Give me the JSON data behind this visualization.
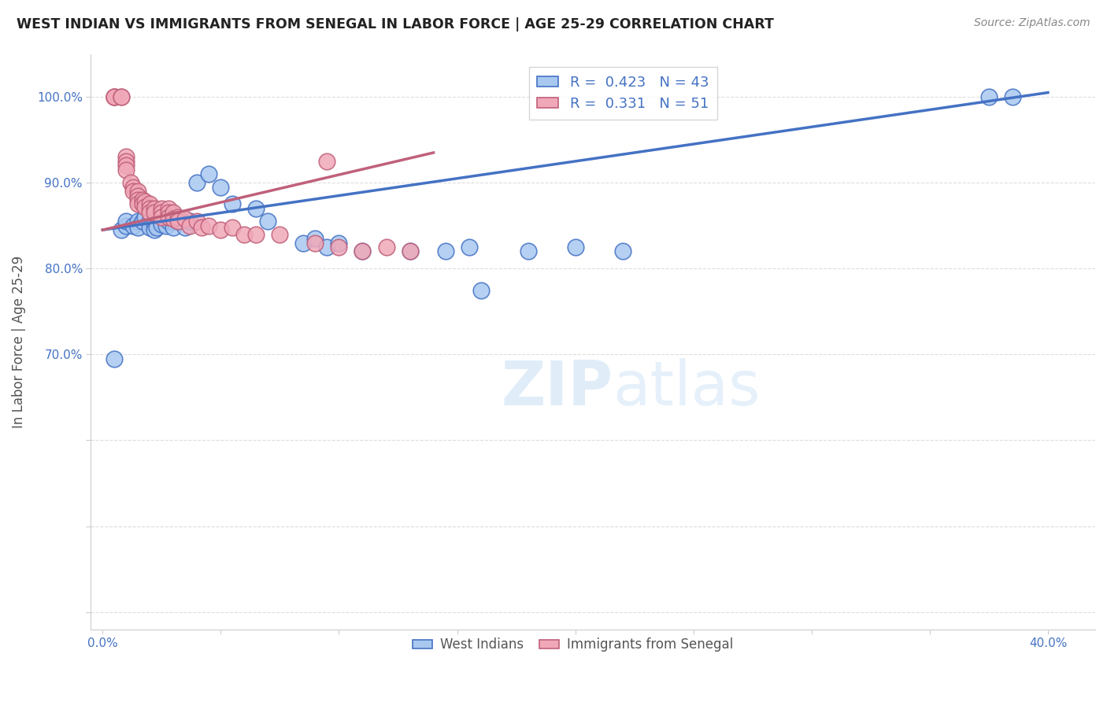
{
  "title": "WEST INDIAN VS IMMIGRANTS FROM SENEGAL IN LABOR FORCE | AGE 25-29 CORRELATION CHART",
  "source": "Source: ZipAtlas.com",
  "ylabel": "In Labor Force | Age 25-29",
  "watermark": "ZIPatlas",
  "blue_R": 0.423,
  "blue_N": 43,
  "pink_R": 0.331,
  "pink_N": 51,
  "xlim": [
    -0.005,
    0.42
  ],
  "ylim": [
    0.38,
    1.05
  ],
  "blue_color": "#a8c8f0",
  "pink_color": "#f0a8b8",
  "blue_line_color": "#4472c4",
  "pink_line_color": "#c0607a",
  "blue_trendline_x": [
    0.0,
    0.4
  ],
  "blue_trendline_y": [
    0.845,
    1.005
  ],
  "pink_trendline_x": [
    0.0,
    0.14
  ],
  "pink_trendline_y": [
    0.845,
    0.935
  ],
  "grid_color": "#dddddd",
  "legend_blue_label": "West Indians",
  "legend_pink_label": "Immigrants from Senegal",
  "blue_scatter_x": [
    0.005,
    0.008,
    0.01,
    0.01,
    0.013,
    0.015,
    0.015,
    0.017,
    0.018,
    0.02,
    0.02,
    0.022,
    0.022,
    0.023,
    0.025,
    0.025,
    0.027,
    0.028,
    0.03,
    0.03,
    0.032,
    0.035,
    0.037,
    0.04,
    0.045,
    0.05,
    0.055,
    0.065,
    0.07,
    0.085,
    0.09,
    0.095,
    0.1,
    0.11,
    0.13,
    0.145,
    0.155,
    0.16,
    0.18,
    0.2,
    0.22,
    0.375,
    0.385
  ],
  "blue_scatter_y": [
    0.695,
    0.845,
    0.85,
    0.855,
    0.85,
    0.855,
    0.848,
    0.855,
    0.86,
    0.855,
    0.848,
    0.852,
    0.845,
    0.848,
    0.855,
    0.852,
    0.85,
    0.855,
    0.855,
    0.848,
    0.855,
    0.848,
    0.855,
    0.9,
    0.91,
    0.895,
    0.875,
    0.87,
    0.855,
    0.83,
    0.835,
    0.825,
    0.83,
    0.82,
    0.82,
    0.82,
    0.825,
    0.775,
    0.82,
    0.825,
    0.82,
    1.0,
    1.0
  ],
  "pink_scatter_x": [
    0.005,
    0.005,
    0.005,
    0.008,
    0.008,
    0.01,
    0.01,
    0.01,
    0.01,
    0.012,
    0.013,
    0.013,
    0.015,
    0.015,
    0.015,
    0.015,
    0.017,
    0.017,
    0.018,
    0.018,
    0.02,
    0.02,
    0.02,
    0.022,
    0.022,
    0.025,
    0.025,
    0.025,
    0.028,
    0.028,
    0.028,
    0.03,
    0.03,
    0.032,
    0.032,
    0.035,
    0.037,
    0.04,
    0.042,
    0.045,
    0.05,
    0.055,
    0.06,
    0.065,
    0.075,
    0.09,
    0.095,
    0.1,
    0.11,
    0.12,
    0.13
  ],
  "pink_scatter_y": [
    1.0,
    1.0,
    1.0,
    1.0,
    1.0,
    0.93,
    0.925,
    0.92,
    0.915,
    0.9,
    0.895,
    0.89,
    0.89,
    0.885,
    0.88,
    0.875,
    0.88,
    0.875,
    0.878,
    0.872,
    0.875,
    0.87,
    0.865,
    0.87,
    0.865,
    0.87,
    0.865,
    0.86,
    0.87,
    0.865,
    0.86,
    0.865,
    0.858,
    0.86,
    0.855,
    0.858,
    0.85,
    0.855,
    0.848,
    0.85,
    0.845,
    0.848,
    0.84,
    0.84,
    0.84,
    0.83,
    0.925,
    0.825,
    0.82,
    0.825,
    0.82
  ]
}
